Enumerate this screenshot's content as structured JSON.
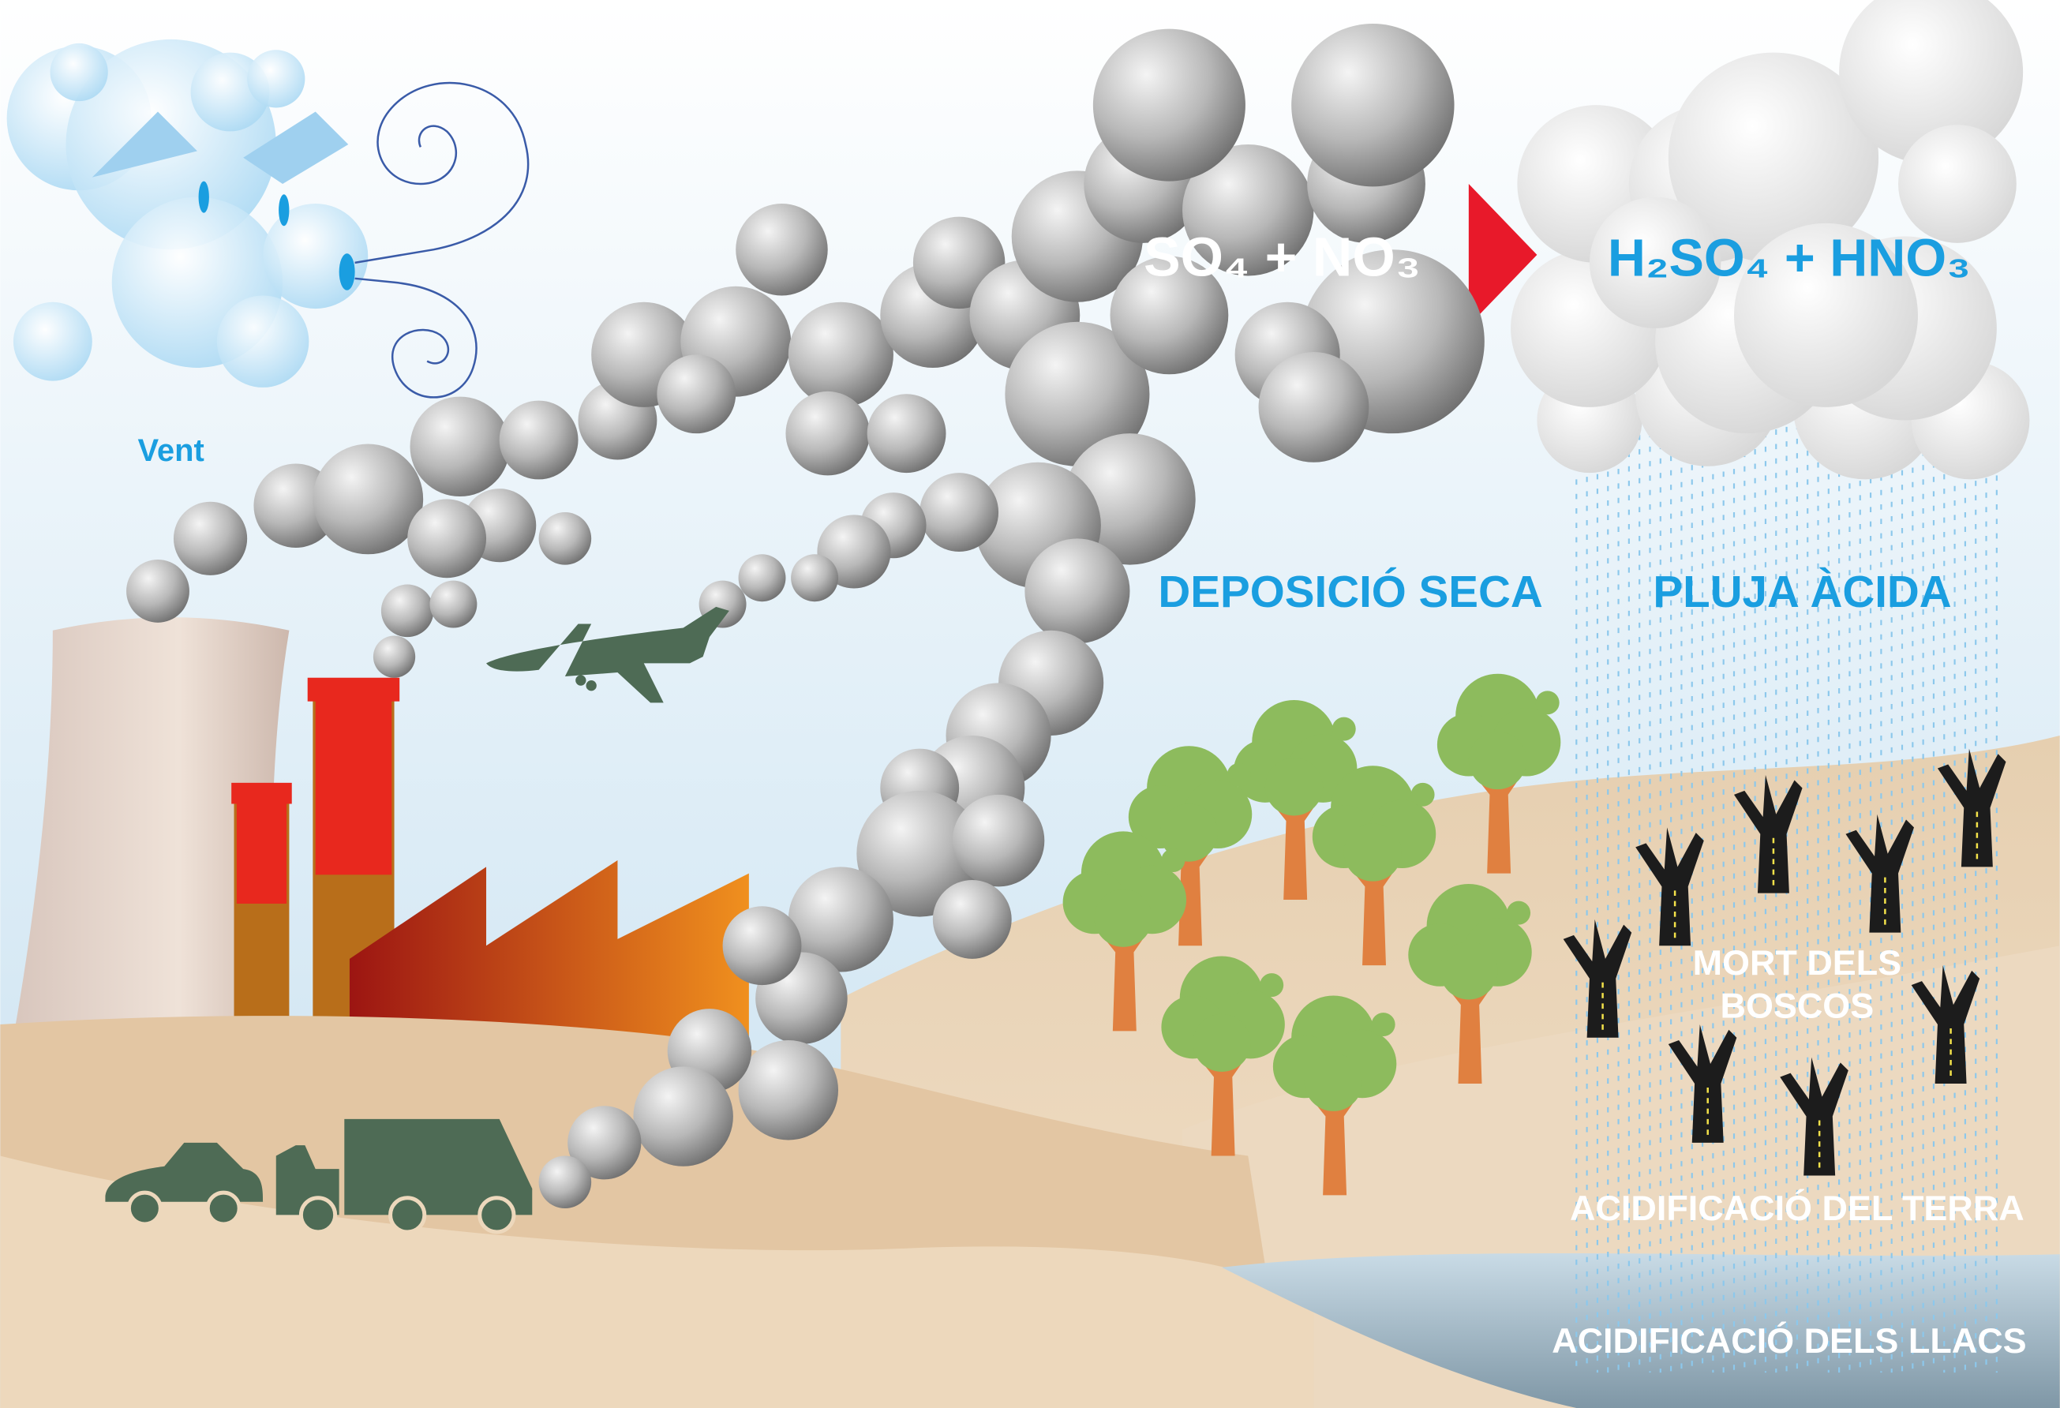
{
  "labels": {
    "wind": "Vent",
    "oxides": "SO₄ + NO₃",
    "acids": "H₂SO₄ + HNO₃",
    "dry_deposition": "DEPOSICIÓ SECA",
    "acid_rain": "PLUJA ÀCIDA",
    "forest_death": [
      "MORT DELS",
      "BOSCOS"
    ],
    "soil_acidification": "ACIDIFICACIÓ DEL TERRA",
    "lake_acidification": "ACIDIFICACIÓ DELS LLACS"
  }
}
